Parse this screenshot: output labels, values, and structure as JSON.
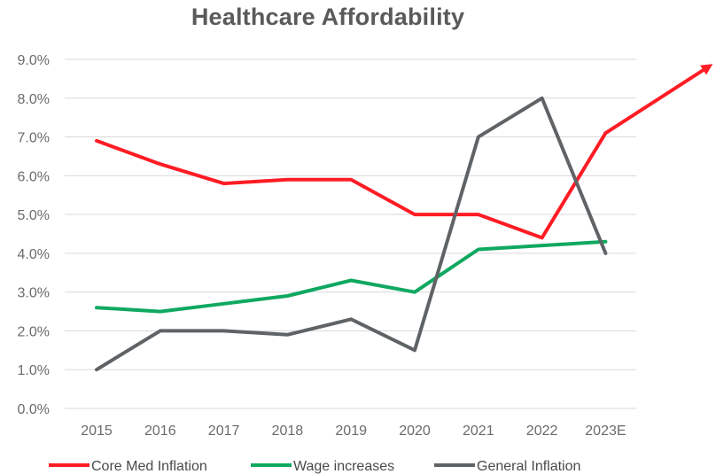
{
  "chart_data": {
    "type": "line",
    "title": "Healthcare Affordability",
    "xlabel": "",
    "ylabel": "",
    "categories": [
      "2015",
      "2016",
      "2017",
      "2018",
      "2019",
      "2020",
      "2021",
      "2022",
      "2023E"
    ],
    "yticks": [
      "0.0%",
      "1.0%",
      "2.0%",
      "3.0%",
      "4.0%",
      "5.0%",
      "6.0%",
      "7.0%",
      "8.0%",
      "9.0%"
    ],
    "ylim": [
      0,
      9
    ],
    "grid": true,
    "legend_position": "bottom",
    "series": [
      {
        "name": "Core Med Inflation",
        "color": "#ff1c24",
        "values": [
          6.9,
          6.3,
          5.8,
          5.9,
          5.9,
          5.0,
          5.0,
          4.4,
          7.1
        ],
        "trend_arrow": true
      },
      {
        "name": "Wage increases",
        "color": "#0fa860",
        "values": [
          2.6,
          2.5,
          2.7,
          2.9,
          3.3,
          3.0,
          4.1,
          4.2,
          4.3
        ]
      },
      {
        "name": "General Inflation",
        "color": "#5f6366",
        "values": [
          1.0,
          2.0,
          2.0,
          1.9,
          2.3,
          1.5,
          7.0,
          8.0,
          4.0
        ]
      }
    ]
  }
}
